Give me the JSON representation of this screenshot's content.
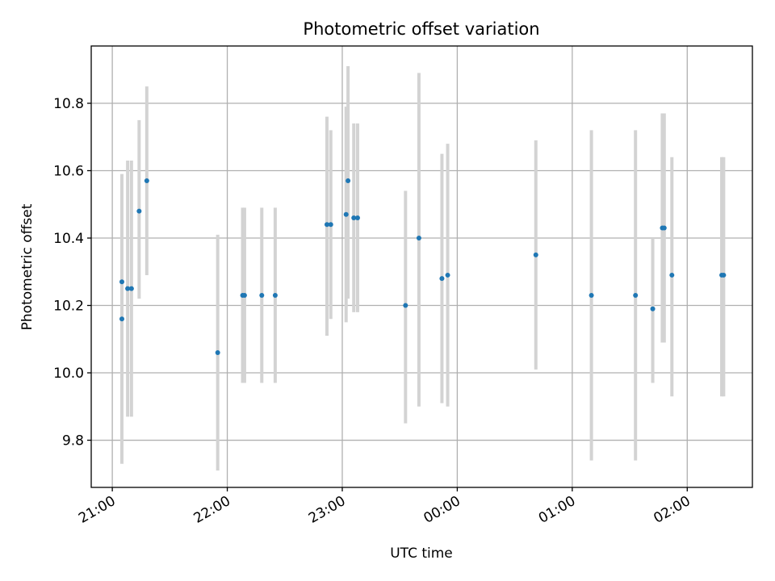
{
  "chart_data": {
    "type": "scatter",
    "title": "Photometric offset variation",
    "xlabel": "UTC time",
    "ylabel": "Photometric offset",
    "x_tick_labels": [
      "21:00",
      "22:00",
      "23:00",
      "00:00",
      "01:00",
      "02:00"
    ],
    "y_tick_labels": [
      "9.8",
      "10.0",
      "10.2",
      "10.4",
      "10.6",
      "10.8"
    ],
    "y_ticks": [
      9.8,
      10.0,
      10.2,
      10.4,
      10.6,
      10.8
    ],
    "xlim": [
      "20:49",
      "02:34"
    ],
    "ylim": [
      9.66,
      10.97
    ],
    "grid": true,
    "colors": {
      "points": "#1f77b4",
      "errorbars": "#d3d3d3",
      "grid": "#b0b0b0"
    },
    "series": [
      {
        "marker": "point-with-errorbar",
        "points": [
          {
            "x": "21:05",
            "y": 10.16,
            "ylow": 9.95,
            "yhigh": 10.59
          },
          {
            "x": "21:05",
            "y": 10.27,
            "ylow": 9.73,
            "yhigh": 10.27
          },
          {
            "x": "21:08",
            "y": 10.25,
            "ylow": 9.87,
            "yhigh": 10.63
          },
          {
            "x": "21:10",
            "y": 10.25,
            "ylow": 9.87,
            "yhigh": 10.63
          },
          {
            "x": "21:14",
            "y": 10.48,
            "ylow": 10.22,
            "yhigh": 10.75
          },
          {
            "x": "21:18",
            "y": 10.57,
            "ylow": 10.29,
            "yhigh": 10.85
          },
          {
            "x": "21:55",
            "y": 10.06,
            "ylow": 9.71,
            "yhigh": 10.41
          },
          {
            "x": "22:08",
            "y": 10.23,
            "ylow": 9.97,
            "yhigh": 10.49
          },
          {
            "x": "22:09",
            "y": 10.23,
            "ylow": 9.97,
            "yhigh": 10.49
          },
          {
            "x": "22:18",
            "y": 10.23,
            "ylow": 9.97,
            "yhigh": 10.49
          },
          {
            "x": "22:25",
            "y": 10.23,
            "ylow": 9.97,
            "yhigh": 10.49
          },
          {
            "x": "22:52",
            "y": 10.44,
            "ylow": 10.11,
            "yhigh": 10.76
          },
          {
            "x": "22:54",
            "y": 10.44,
            "ylow": 10.16,
            "yhigh": 10.72
          },
          {
            "x": "23:02",
            "y": 10.47,
            "ylow": 10.15,
            "yhigh": 10.79
          },
          {
            "x": "23:03",
            "y": 10.57,
            "ylow": 10.22,
            "yhigh": 10.91
          },
          {
            "x": "23:06",
            "y": 10.46,
            "ylow": 10.18,
            "yhigh": 10.74
          },
          {
            "x": "23:08",
            "y": 10.46,
            "ylow": 10.18,
            "yhigh": 10.74
          },
          {
            "x": "23:33",
            "y": 10.2,
            "ylow": 9.85,
            "yhigh": 10.54
          },
          {
            "x": "23:40",
            "y": 10.4,
            "ylow": 9.9,
            "yhigh": 10.89
          },
          {
            "x": "23:52",
            "y": 10.28,
            "ylow": 9.91,
            "yhigh": 10.65
          },
          {
            "x": "23:55",
            "y": 10.29,
            "ylow": 9.9,
            "yhigh": 10.68
          },
          {
            "x": "00:41",
            "y": 10.35,
            "ylow": 10.01,
            "yhigh": 10.69
          },
          {
            "x": "01:10",
            "y": 10.23,
            "ylow": 9.74,
            "yhigh": 10.72
          },
          {
            "x": "01:33",
            "y": 10.23,
            "ylow": 9.74,
            "yhigh": 10.72
          },
          {
            "x": "01:42",
            "y": 10.19,
            "ylow": 9.97,
            "yhigh": 10.4
          },
          {
            "x": "01:47",
            "y": 10.43,
            "ylow": 10.09,
            "yhigh": 10.77
          },
          {
            "x": "01:48",
            "y": 10.43,
            "ylow": 10.09,
            "yhigh": 10.77
          },
          {
            "x": "01:52",
            "y": 10.29,
            "ylow": 9.93,
            "yhigh": 10.64
          },
          {
            "x": "02:18",
            "y": 10.29,
            "ylow": 9.93,
            "yhigh": 10.64
          },
          {
            "x": "02:19",
            "y": 10.29,
            "ylow": 9.93,
            "yhigh": 10.64
          }
        ]
      }
    ]
  }
}
